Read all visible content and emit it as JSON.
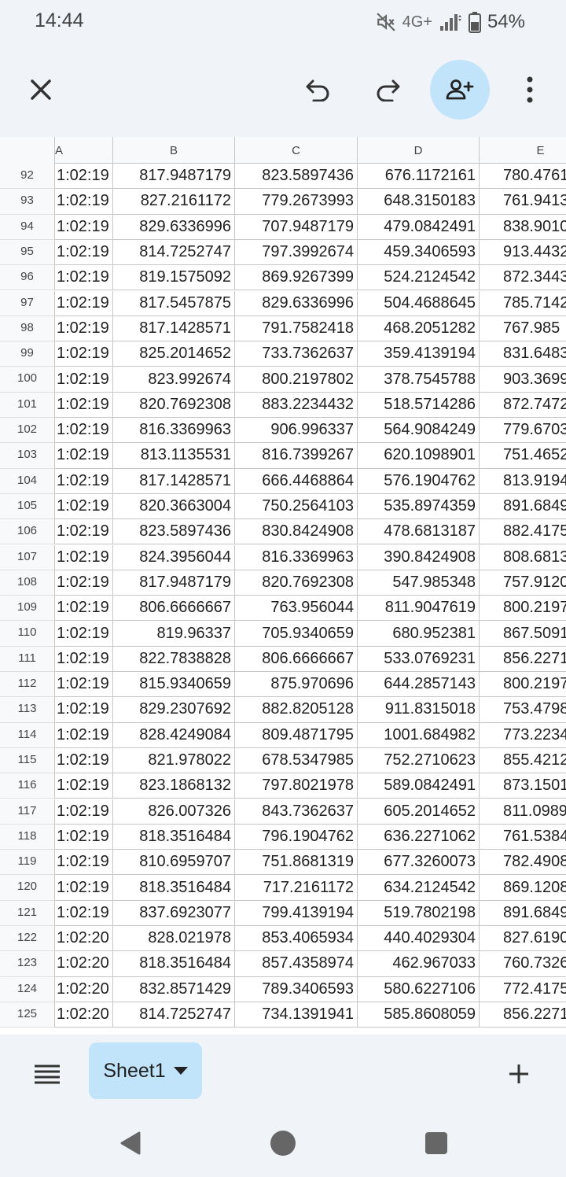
{
  "status_bar": {
    "time": "14:44",
    "network": "4G+",
    "battery": "54%",
    "icons": [
      "mute-icon",
      "signal-icon",
      "battery-icon"
    ]
  },
  "toolbar": {
    "icons": [
      "close-icon",
      "undo-icon",
      "redo-icon",
      "add-person-icon",
      "more-vert-icon"
    ]
  },
  "grid": {
    "column_headers": [
      "A",
      "B",
      "C",
      "D",
      "E"
    ],
    "rows": [
      {
        "num": "92",
        "a": "1:02:19",
        "b": "817.9487179",
        "c": "823.5897436",
        "d": "676.1172161",
        "e": "780.4761"
      },
      {
        "num": "93",
        "a": "1:02:19",
        "b": "827.2161172",
        "c": "779.2673993",
        "d": "648.3150183",
        "e": "761.9413"
      },
      {
        "num": "94",
        "a": "1:02:19",
        "b": "829.6336996",
        "c": "707.9487179",
        "d": "479.0842491",
        "e": "838.9010"
      },
      {
        "num": "95",
        "a": "1:02:19",
        "b": "814.7252747",
        "c": "797.3992674",
        "d": "459.3406593",
        "e": "913.4432"
      },
      {
        "num": "96",
        "a": "1:02:19",
        "b": "819.1575092",
        "c": "869.9267399",
        "d": "524.2124542",
        "e": "872.3443"
      },
      {
        "num": "97",
        "a": "1:02:19",
        "b": "817.5457875",
        "c": "829.6336996",
        "d": "504.4688645",
        "e": "785.7142"
      },
      {
        "num": "98",
        "a": "1:02:19",
        "b": "817.1428571",
        "c": "791.7582418",
        "d": "468.2051282",
        "e": "767.985"
      },
      {
        "num": "99",
        "a": "1:02:19",
        "b": "825.2014652",
        "c": "733.7362637",
        "d": "359.4139194",
        "e": "831.6483"
      },
      {
        "num": "100",
        "a": "1:02:19",
        "b": "823.992674",
        "c": "800.2197802",
        "d": "378.7545788",
        "e": "903.3699"
      },
      {
        "num": "101",
        "a": "1:02:19",
        "b": "820.7692308",
        "c": "883.2234432",
        "d": "518.5714286",
        "e": "872.7472"
      },
      {
        "num": "102",
        "a": "1:02:19",
        "b": "816.3369963",
        "c": "906.996337",
        "d": "564.9084249",
        "e": "779.6703"
      },
      {
        "num": "103",
        "a": "1:02:19",
        "b": "813.1135531",
        "c": "816.7399267",
        "d": "620.1098901",
        "e": "751.4652"
      },
      {
        "num": "104",
        "a": "1:02:19",
        "b": "817.1428571",
        "c": "666.4468864",
        "d": "576.1904762",
        "e": "813.9194"
      },
      {
        "num": "105",
        "a": "1:02:19",
        "b": "820.3663004",
        "c": "750.2564103",
        "d": "535.8974359",
        "e": "891.6849"
      },
      {
        "num": "106",
        "a": "1:02:19",
        "b": "823.5897436",
        "c": "830.8424908",
        "d": "478.6813187",
        "e": "882.4175"
      },
      {
        "num": "107",
        "a": "1:02:19",
        "b": "824.3956044",
        "c": "816.3369963",
        "d": "390.8424908",
        "e": "808.6813"
      },
      {
        "num": "108",
        "a": "1:02:19",
        "b": "817.9487179",
        "c": "820.7692308",
        "d": "547.985348",
        "e": "757.9120"
      },
      {
        "num": "109",
        "a": "1:02:19",
        "b": "806.6666667",
        "c": "763.956044",
        "d": "811.9047619",
        "e": "800.2197"
      },
      {
        "num": "110",
        "a": "1:02:19",
        "b": "819.96337",
        "c": "705.9340659",
        "d": "680.952381",
        "e": "867.5091"
      },
      {
        "num": "111",
        "a": "1:02:19",
        "b": "822.7838828",
        "c": "806.6666667",
        "d": "533.0769231",
        "e": "856.2271"
      },
      {
        "num": "112",
        "a": "1:02:19",
        "b": "815.9340659",
        "c": "875.970696",
        "d": "644.2857143",
        "e": "800.2197"
      },
      {
        "num": "113",
        "a": "1:02:19",
        "b": "829.2307692",
        "c": "882.8205128",
        "d": "911.8315018",
        "e": "753.4798"
      },
      {
        "num": "114",
        "a": "1:02:19",
        "b": "828.4249084",
        "c": "809.4871795",
        "d": "1001.684982",
        "e": "773.2234"
      },
      {
        "num": "115",
        "a": "1:02:19",
        "b": "821.978022",
        "c": "678.5347985",
        "d": "752.2710623",
        "e": "855.4212"
      },
      {
        "num": "116",
        "a": "1:02:19",
        "b": "823.1868132",
        "c": "797.8021978",
        "d": "589.0842491",
        "e": "873.1501"
      },
      {
        "num": "117",
        "a": "1:02:19",
        "b": "826.007326",
        "c": "843.7362637",
        "d": "605.2014652",
        "e": "811.0989"
      },
      {
        "num": "118",
        "a": "1:02:19",
        "b": "818.3516484",
        "c": "796.1904762",
        "d": "636.2271062",
        "e": "761.5384"
      },
      {
        "num": "119",
        "a": "1:02:19",
        "b": "810.6959707",
        "c": "751.8681319",
        "d": "677.3260073",
        "e": "782.4908"
      },
      {
        "num": "120",
        "a": "1:02:19",
        "b": "818.3516484",
        "c": "717.2161172",
        "d": "634.2124542",
        "e": "869.1208"
      },
      {
        "num": "121",
        "a": "1:02:19",
        "b": "837.6923077",
        "c": "799.4139194",
        "d": "519.7802198",
        "e": "891.6849"
      },
      {
        "num": "122",
        "a": "1:02:20",
        "b": "828.021978",
        "c": "853.4065934",
        "d": "440.4029304",
        "e": "827.6190"
      },
      {
        "num": "123",
        "a": "1:02:20",
        "b": "818.3516484",
        "c": "857.4358974",
        "d": "462.967033",
        "e": "760.7326"
      },
      {
        "num": "124",
        "a": "1:02:20",
        "b": "832.8571429",
        "c": "789.3406593",
        "d": "580.6227106",
        "e": "772.4175"
      },
      {
        "num": "125",
        "a": "1:02:20",
        "b": "814.7252747",
        "c": "734.1391941",
        "d": "585.8608059",
        "e": "856.2271"
      }
    ]
  },
  "sheet_bar": {
    "sheet_tab": "Sheet1",
    "icons": [
      "sheet-list-icon",
      "dropdown-arrow-icon",
      "add-icon"
    ]
  },
  "nav_bar": {
    "icons": [
      "back-icon",
      "home-icon",
      "recents-icon"
    ]
  },
  "colors": {
    "background": "#f0f4f9",
    "accent": "#c2e4fb",
    "grid_line": "#c4c7c5",
    "header_bg": "#f8f9fa"
  }
}
